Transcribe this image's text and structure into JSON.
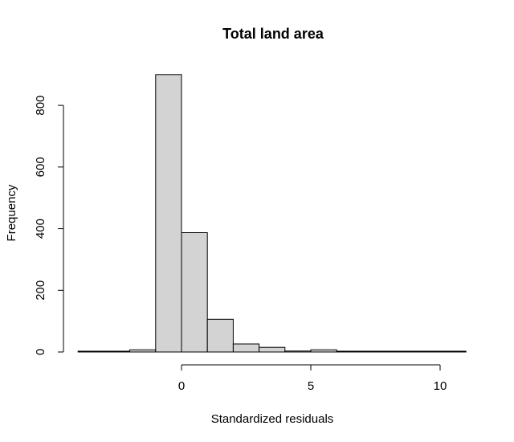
{
  "chart_data": {
    "type": "bar",
    "title": "Total land area",
    "xlabel": "Standardized residuals",
    "ylabel": "Frequency",
    "xlim": [
      -4,
      11
    ],
    "ylim": [
      0,
      900
    ],
    "x_ticks": [
      0,
      5,
      10
    ],
    "y_ticks": [
      0,
      200,
      400,
      600,
      800
    ],
    "bins": [
      {
        "x0": -4,
        "x1": -3,
        "count": 1
      },
      {
        "x0": -3,
        "x1": -2,
        "count": 2
      },
      {
        "x0": -2,
        "x1": -1,
        "count": 7
      },
      {
        "x0": -1,
        "x1": 0,
        "count": 900
      },
      {
        "x0": 0,
        "x1": 1,
        "count": 387
      },
      {
        "x0": 1,
        "x1": 2,
        "count": 106
      },
      {
        "x0": 2,
        "x1": 3,
        "count": 26
      },
      {
        "x0": 3,
        "x1": 4,
        "count": 15
      },
      {
        "x0": 4,
        "x1": 5,
        "count": 3
      },
      {
        "x0": 5,
        "x1": 6,
        "count": 7
      },
      {
        "x0": 6,
        "x1": 7,
        "count": 2
      },
      {
        "x0": 7,
        "x1": 8,
        "count": 0
      },
      {
        "x0": 8,
        "x1": 9,
        "count": 0
      },
      {
        "x0": 9,
        "x1": 10,
        "count": 0
      },
      {
        "x0": 10,
        "x1": 11,
        "count": 1
      }
    ],
    "grid": false,
    "legend": "none",
    "bar_color": "#d3d3d3",
    "edge_color": "#000000"
  }
}
